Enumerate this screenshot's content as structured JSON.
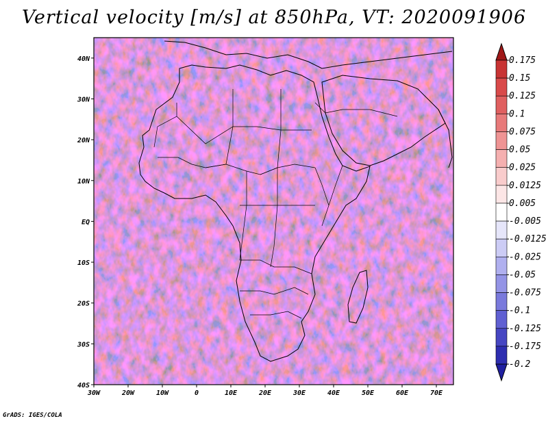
{
  "title": "Vertical velocity [m/s] at 850hPa, VT: 2020091906",
  "footer": "GrADS: IGES/COLA",
  "map": {
    "lon_range": [
      -30,
      75
    ],
    "lat_range": [
      -40,
      45
    ],
    "lon_ticks": [
      {
        "value": -30,
        "label": "30W"
      },
      {
        "value": -20,
        "label": "20W"
      },
      {
        "value": -10,
        "label": "10W"
      },
      {
        "value": 0,
        "label": "0"
      },
      {
        "value": 10,
        "label": "10E"
      },
      {
        "value": 20,
        "label": "20E"
      },
      {
        "value": 30,
        "label": "30E"
      },
      {
        "value": 40,
        "label": "40E"
      },
      {
        "value": 50,
        "label": "50E"
      },
      {
        "value": 60,
        "label": "60E"
      },
      {
        "value": 70,
        "label": "70E"
      }
    ],
    "lat_ticks": [
      {
        "value": 40,
        "label": "40N"
      },
      {
        "value": 30,
        "label": "30N"
      },
      {
        "value": 20,
        "label": "20N"
      },
      {
        "value": 10,
        "label": "10N"
      },
      {
        "value": 0,
        "label": "EQ"
      },
      {
        "value": -10,
        "label": "10S"
      },
      {
        "value": -20,
        "label": "20S"
      },
      {
        "value": -30,
        "label": "30S"
      },
      {
        "value": -40,
        "label": "40S"
      }
    ]
  },
  "colorbar": {
    "entries": [
      {
        "label": "0.175",
        "color": "#b22222"
      },
      {
        "label": "0.15",
        "color": "#c83434"
      },
      {
        "label": "0.125",
        "color": "#d94a4a"
      },
      {
        "label": "0.1",
        "color": "#e06060"
      },
      {
        "label": "0.075",
        "color": "#e87a7a"
      },
      {
        "label": "0.05",
        "color": "#ef9494"
      },
      {
        "label": "0.025",
        "color": "#f5b0b0"
      },
      {
        "label": "0.0125",
        "color": "#f9cccc"
      },
      {
        "label": "0.005",
        "color": "#fce6e6"
      },
      {
        "label": "-0.005",
        "color": "#ffffff"
      },
      {
        "label": "-0.0125",
        "color": "#e6e6fa"
      },
      {
        "label": "-0.025",
        "color": "#ccccf5"
      },
      {
        "label": "-0.05",
        "color": "#b0b0ef"
      },
      {
        "label": "-0.075",
        "color": "#9494e6"
      },
      {
        "label": "-0.1",
        "color": "#7a7adc"
      },
      {
        "label": "-0.125",
        "color": "#6060d2"
      },
      {
        "label": "-0.175",
        "color": "#4646c2"
      },
      {
        "label": "-0.2",
        "color": "#2e2eb0"
      }
    ],
    "top_color": "#a01818",
    "bottom_color": "#2020a0"
  }
}
